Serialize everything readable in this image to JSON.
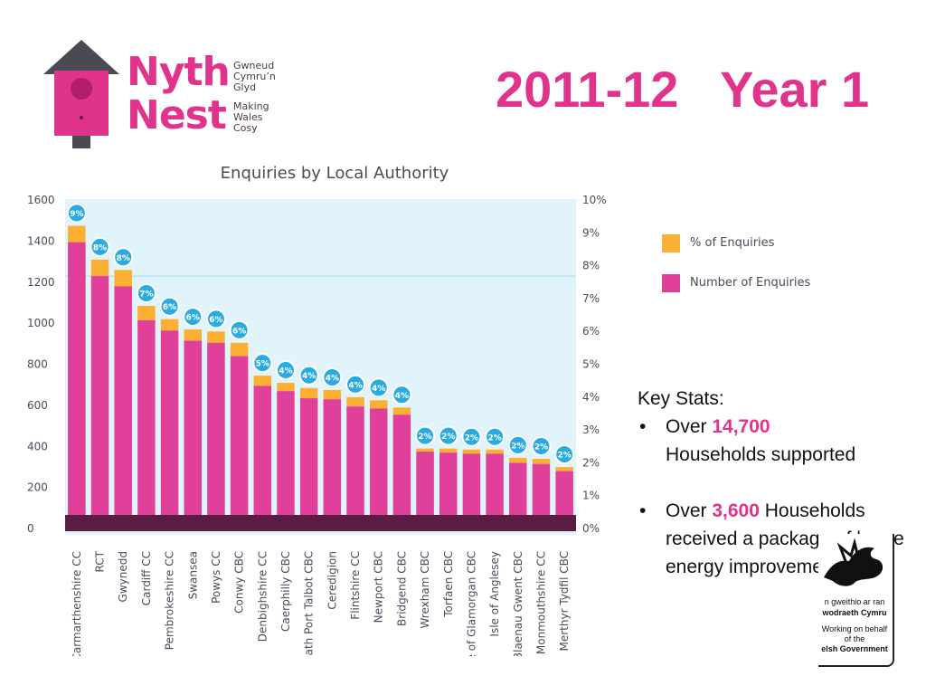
{
  "logo": {
    "word1": "Nyth",
    "word2": "Nest",
    "welsh_tagline": [
      "Gwneud",
      "Cymru’n",
      "Glyd"
    ],
    "english_tagline": [
      "Making",
      "Wales",
      "Cosy"
    ]
  },
  "slide_title": "2011-12   Year 1",
  "key_stats": {
    "heading": "Key Stats:",
    "bullet": "•",
    "stat1": {
      "prefix": "Over ",
      "value": "14,700",
      "rest": "Households supported"
    },
    "stat2": {
      "prefix": "Over ",
      "value": "3,600",
      "rest": " Households received a package of home energy improvements"
    }
  },
  "gov_logo": {
    "line1": "n gweithio ar ran",
    "line2": "wodraeth Cymru",
    "line3": "Working on behalf",
    "line4": "of the",
    "line5": "elsh Government"
  },
  "colors": {
    "number": "#e0409a",
    "percent": "#fbb034",
    "plot_bg": "#e2f4fb",
    "baseline": "#5a1c42",
    "badge": "#29abe2",
    "brand": "#e0348c"
  },
  "chart_data": {
    "type": "bar",
    "title": "Enquiries by Local Authority",
    "categories": [
      "Carmarthenshire CC",
      "RCT",
      "Gwynedd",
      "Cardiff CC",
      "Pembrokeshire CC",
      "Swansea",
      "Powys CC",
      "Conwy CBC",
      "Denbighshire CC",
      "Caerphilly CBC",
      "Neath Port Talbot CBC",
      "Ceredigion",
      "Flintshire CC",
      "Newport CBC",
      "Bridgend CBC",
      "Wrexham CBC",
      "Torfaen CBC",
      "Vale of Glamorgan CBC",
      "Isle of Anglesey",
      "Blaenau Gwent CBC",
      "Monmouthshire CC",
      "Merthyr Tydfil CBC"
    ],
    "series": [
      {
        "name": "Number of Enquiries",
        "values": [
          1390,
          1225,
          1175,
          1010,
          960,
          910,
          900,
          835,
          690,
          665,
          630,
          625,
          590,
          580,
          550,
          370,
          365,
          360,
          360,
          315,
          310,
          275
        ]
      },
      {
        "name": "% of Enquiries",
        "values": [
          9,
          8,
          8,
          7,
          6,
          6,
          6,
          6,
          5,
          4,
          4,
          4,
          4,
          4,
          4,
          2,
          2,
          2,
          2,
          2,
          2,
          2
        ]
      }
    ],
    "badge_labels": [
      "9%",
      "8%",
      "8%",
      "7%",
      "6%",
      "6%",
      "6%",
      "6%",
      "5%",
      "4%",
      "4%",
      "4%",
      "4%",
      "4%",
      "4%",
      "2%",
      "2%",
      "2%",
      "2%",
      "2%",
      "2%",
      "2%"
    ],
    "stacked_totals": [
      1470,
      1305,
      1255,
      1080,
      1015,
      965,
      955,
      900,
      740,
      705,
      680,
      670,
      635,
      620,
      585,
      385,
      385,
      380,
      380,
      340,
      335,
      295
    ],
    "y_left": {
      "ylim": [
        0,
        1600
      ],
      "ticks": [
        "0",
        "200",
        "400",
        "600",
        "800",
        "1000",
        "1200",
        "1400",
        "1600"
      ]
    },
    "y_right": {
      "ylim": [
        0,
        10
      ],
      "ticks": [
        "0%",
        "1%",
        "2%",
        "3%",
        "4%",
        "5%",
        "6%",
        "7%",
        "8%",
        "9%",
        "10%"
      ]
    },
    "legend": [
      "% of Enquiries",
      "Number of Enquiries"
    ],
    "legend_position": "right"
  }
}
